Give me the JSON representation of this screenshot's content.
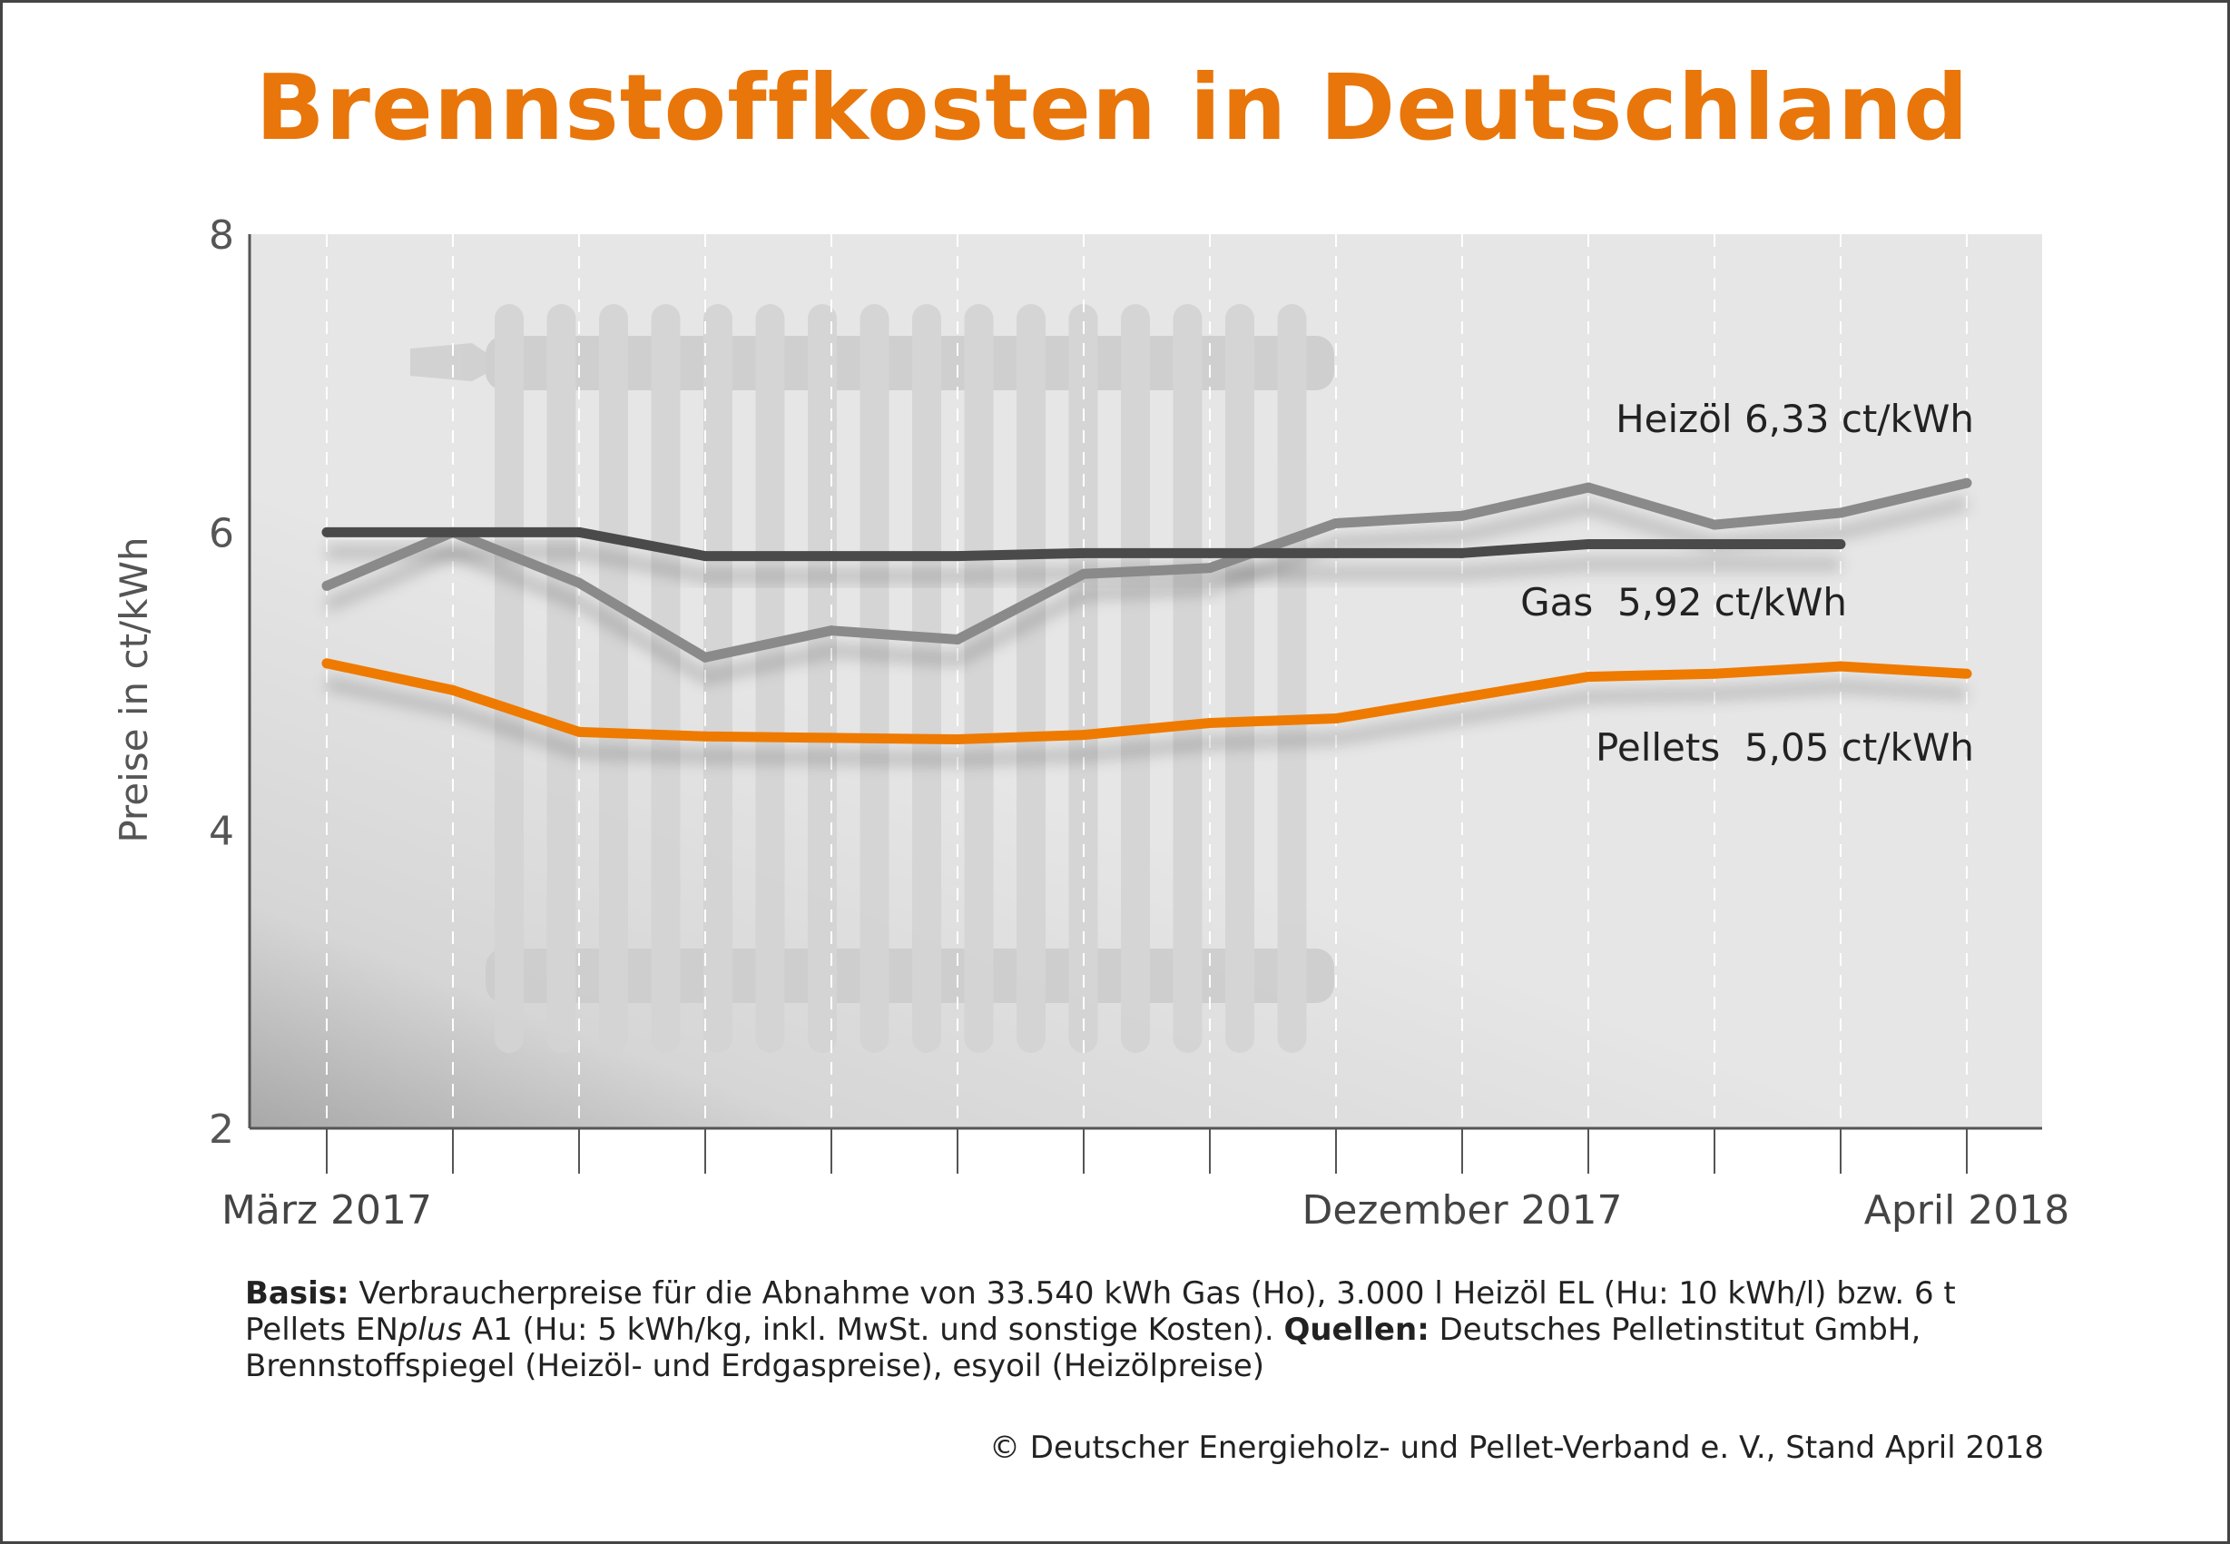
{
  "colors": {
    "title": "#e8760a",
    "pellets": "#ef7a00",
    "gas": "#4a4a4a",
    "heizoel": "#8a8a8a"
  },
  "title": "Brennstoffkosten in Deutschland",
  "chart_data": {
    "type": "line",
    "title": "Brennstoffkosten in Deutschland",
    "ylabel": "Preise in ct/kWh",
    "xlabel": "",
    "ylim": [
      2,
      8
    ],
    "yticks": [
      "2",
      "4",
      "6",
      "8"
    ],
    "x_tick_count": 14,
    "x_labels": [
      {
        "index": 0,
        "label": "März 2017"
      },
      {
        "index": 9,
        "label": "Dezember 2017"
      },
      {
        "index": 13,
        "label": "April 2018"
      }
    ],
    "series": [
      {
        "name": "Heizöl",
        "label": "Heizöl 6,33 ct/kWh",
        "color": "#8a8a8a",
        "x": [
          0,
          1,
          2,
          3,
          4,
          5,
          6,
          7,
          8,
          9,
          10,
          11,
          12,
          13
        ],
        "values": [
          5.64,
          6.0,
          5.66,
          5.16,
          5.34,
          5.28,
          5.72,
          5.76,
          6.06,
          6.11,
          6.3,
          6.05,
          6.13,
          6.33
        ]
      },
      {
        "name": "Gas",
        "label": "Gas  5,92 ct/kWh",
        "color": "#4a4a4a",
        "x": [
          0,
          1,
          2,
          3,
          4,
          5,
          6,
          7,
          8,
          9,
          10,
          11,
          12
        ],
        "values": [
          6.0,
          6.0,
          6.0,
          5.84,
          5.84,
          5.84,
          5.86,
          5.86,
          5.86,
          5.86,
          5.92,
          5.92,
          5.92
        ]
      },
      {
        "name": "Pellets",
        "label": "Pellets  5,05 ct/kWh",
        "color": "#ef7a00",
        "x": [
          0,
          1,
          2,
          3,
          4,
          5,
          6,
          7,
          8,
          9,
          10,
          11,
          12,
          13
        ],
        "values": [
          5.12,
          4.94,
          4.66,
          4.63,
          4.62,
          4.61,
          4.64,
          4.72,
          4.75,
          4.89,
          5.03,
          5.05,
          5.1,
          5.05
        ]
      }
    ]
  },
  "footnote": {
    "basis_label": "Basis:",
    "basis_text": " Verbraucherpreise für die Abnahme von 33.540 kWh Gas (Ho), 3.000 l Heizöl EL (Hu: 10 kWh/l) bzw. 6 t Pellets EN",
    "plus_text": "plus",
    "basis_text2": " A1 (Hu: 5 kWh/kg, inkl. MwSt. und sonstige Kosten). ",
    "sources_label": "Quellen:",
    "sources_text": " Deutsches Pelletinstitut GmbH, Brennstoffspiegel (Heizöl- und Erdgaspreise), esyoil (Heizölpreise)"
  },
  "copyright": "© Deutscher Energieholz- und Pellet-Verband e. V., Stand April 2018"
}
